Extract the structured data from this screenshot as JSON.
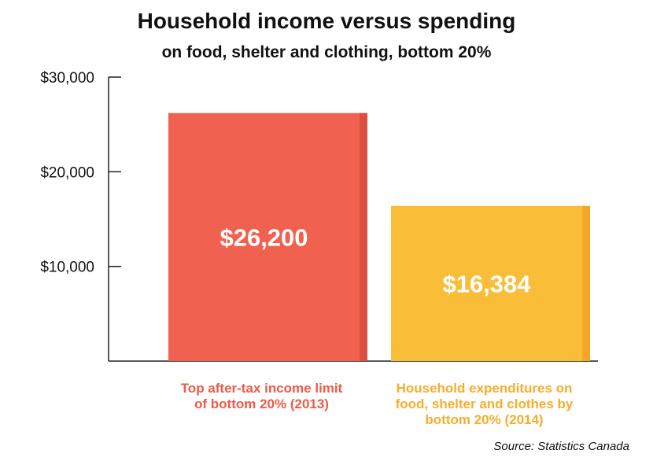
{
  "chart_data": {
    "type": "bar",
    "title": "Household income versus spending",
    "subtitle": "on food, shelter and clothing, bottom 20%",
    "ylim": [
      0,
      30000
    ],
    "yticks": [
      {
        "value": 10000,
        "label": "$10,000"
      },
      {
        "value": 20000,
        "label": "$20,000"
      },
      {
        "value": 30000,
        "label": "$30,000"
      }
    ],
    "categories": [
      [
        "Top after-tax income limit",
        "of bottom 20% (2013)"
      ],
      [
        "Household expenditures on",
        "food, shelter and clothes by",
        "bottom 20% (2014)"
      ]
    ],
    "values": [
      26200,
      16384
    ],
    "value_labels": [
      "$26,200",
      "$16,384"
    ],
    "colors": [
      "#f06150",
      "#fabd38"
    ],
    "side_colors": [
      "#d9503f",
      "#f5a626"
    ],
    "label_colors": [
      "#ef5a48",
      "#f7ad2c"
    ],
    "grid": false,
    "source": "Source: Statistics Canada"
  }
}
